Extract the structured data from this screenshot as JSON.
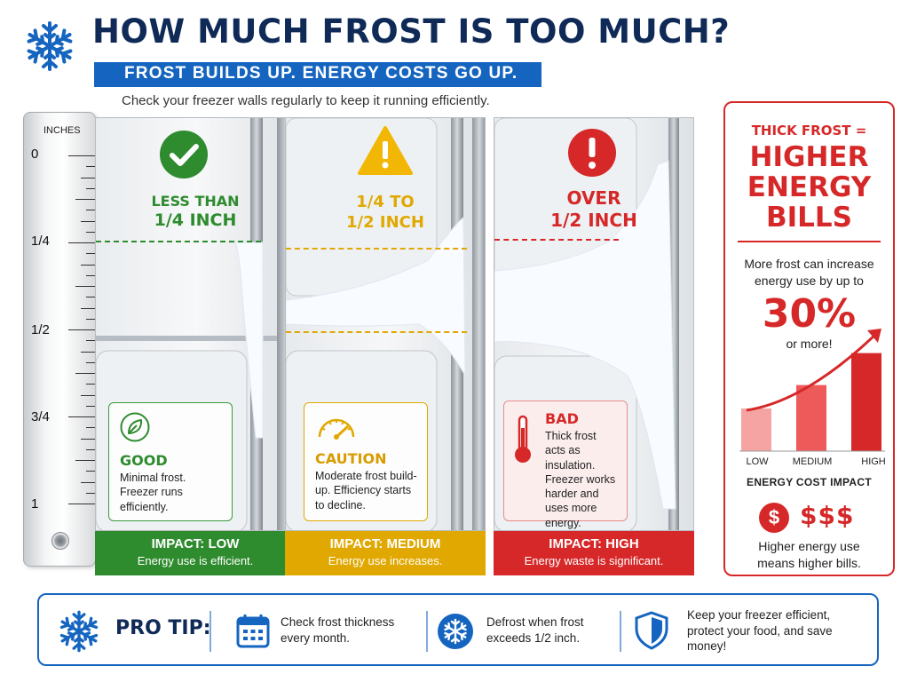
{
  "header": {
    "title": "HOW MUCH FROST IS TOO MUCH?",
    "banner": "FROST BUILDS UP. ENERGY COSTS GO UP.",
    "subtitle": "Check your freezer walls regularly to keep it running efficiently."
  },
  "ruler": {
    "unit": "INCHES",
    "labels": [
      "0",
      "1/4",
      "1/2",
      "3/4",
      "1"
    ]
  },
  "panels": [
    {
      "level_line1": "LESS THAN",
      "level_line2": "1/4 INCH",
      "status_title": "GOOD",
      "status_text": "Minimal frost. Freezer runs efficiently.",
      "impact_title": "IMPACT: LOW",
      "impact_text": "Energy use is efficient.",
      "accent": "#2e8b2e",
      "icon": "check-circle-icon",
      "card_icon": "leaf-icon"
    },
    {
      "level_line1": "1/4 TO",
      "level_line2": "1/2 INCH",
      "status_title": "CAUTION",
      "status_text": "Moderate frost build-up. Efficiency starts to decline.",
      "impact_title": "IMPACT: MEDIUM",
      "impact_text": "Energy use increases.",
      "accent": "#e0a800",
      "icon": "warning-triangle-icon",
      "card_icon": "gauge-icon"
    },
    {
      "level_line1": "OVER",
      "level_line2": "1/2 INCH",
      "status_title": "BAD",
      "status_text": "Thick frost acts as insulation. Freezer works harder and uses more energy.",
      "impact_title": "IMPACT: HIGH",
      "impact_text": "Energy waste is significant.",
      "accent": "#d62828",
      "icon": "alert-circle-icon",
      "card_icon": "thermometer-icon"
    }
  ],
  "side": {
    "eq_text": "THICK FROST =",
    "big_line1": "HIGHER",
    "big_line2": "ENERGY",
    "big_line3": "BILLS",
    "increase_text1": "More frost can increase",
    "increase_text2": "energy use by up to",
    "percent": "30%",
    "or_more": "or more!",
    "bottom_text1": "Higher energy use",
    "bottom_text2": "means higher bills.",
    "coin_symbol": "$",
    "dollars": "$$$"
  },
  "chart_data": {
    "type": "bar",
    "title": "ENERGY COST IMPACT",
    "categories": [
      "LOW",
      "MEDIUM",
      "HIGH"
    ],
    "values": [
      1,
      1.55,
      2.3
    ],
    "ylim": [
      0,
      2.5
    ],
    "colors": [
      "#f5a3a3",
      "#ee5a5a",
      "#d62828"
    ],
    "trend_arrow": true
  },
  "pro_tip": {
    "title": "PRO TIP:",
    "tip1": "Check frost thickness every month.",
    "tip2": "Defrost when frost exceeds 1/2 inch.",
    "tip3": "Keep your freezer efficient, protect your food, and save money!"
  }
}
